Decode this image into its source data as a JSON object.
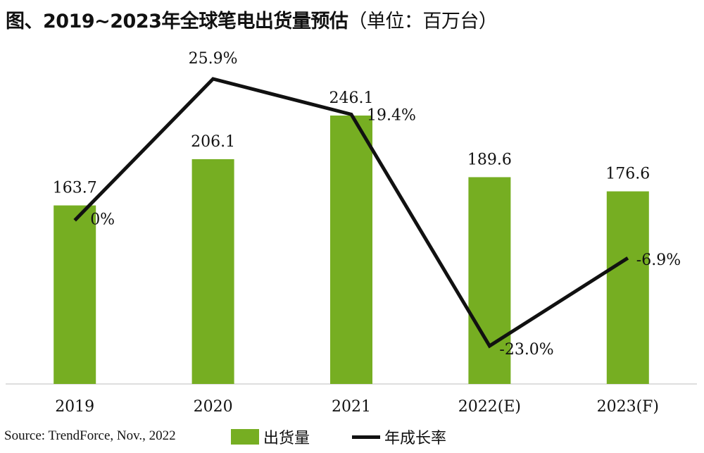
{
  "title": {
    "main": "图、2019~2023年全球笔电出货量预估",
    "unit": "（单位：百万台）"
  },
  "source": "Source: TrendForce, Nov., 2022",
  "legend": [
    {
      "label": "出货量",
      "type": "bar",
      "color": "#76AE22"
    },
    {
      "label": "年成长率",
      "type": "line",
      "color": "#111111"
    }
  ],
  "chart_data": {
    "type": "bar",
    "categories": [
      "2019",
      "2020",
      "2021",
      "2022(E)",
      "2023(F)"
    ],
    "series": [
      {
        "name": "出货量",
        "type": "bar",
        "values": [
          163.7,
          206.1,
          246.1,
          189.6,
          176.6
        ],
        "labels": [
          "163.7",
          "206.1",
          "246.1",
          "189.6",
          "176.6"
        ],
        "color": "#76AE22"
      },
      {
        "name": "年成长率",
        "type": "line",
        "values": [
          0,
          25.9,
          19.4,
          -23.0,
          -6.9
        ],
        "labels": [
          "0%",
          "25.9%",
          "19.4%",
          "-23.0%",
          "-6.9%"
        ],
        "color": "#111111"
      }
    ],
    "ylim": [
      0,
      246.1
    ],
    "y2lim": [
      -23.0,
      25.9
    ],
    "grid": false
  }
}
